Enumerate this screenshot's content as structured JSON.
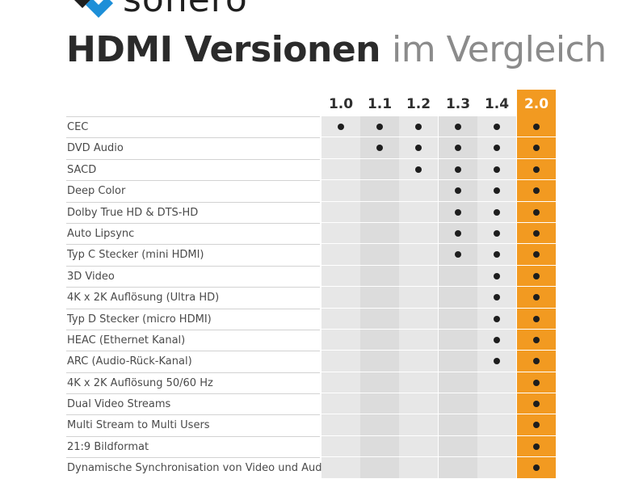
{
  "logo": {
    "text": "sonero"
  },
  "title": {
    "bold": "HDMI Versionen",
    "light": "im Vergleich"
  },
  "versions": [
    "1.0",
    "1.1",
    "1.2",
    "1.3",
    "1.4",
    "2.0"
  ],
  "highlight_color": "#f29a21",
  "features": [
    {
      "label": "CEC",
      "supported": [
        true,
        true,
        true,
        true,
        true,
        true
      ]
    },
    {
      "label": "DVD Audio",
      "supported": [
        false,
        true,
        true,
        true,
        true,
        true
      ]
    },
    {
      "label": "SACD",
      "supported": [
        false,
        false,
        true,
        true,
        true,
        true
      ]
    },
    {
      "label": "Deep Color",
      "supported": [
        false,
        false,
        false,
        true,
        true,
        true
      ]
    },
    {
      "label": "Dolby True HD & DTS-HD",
      "supported": [
        false,
        false,
        false,
        true,
        true,
        true
      ]
    },
    {
      "label": "Auto Lipsync",
      "supported": [
        false,
        false,
        false,
        true,
        true,
        true
      ]
    },
    {
      "label": "Typ C Stecker (mini HDMI)",
      "supported": [
        false,
        false,
        false,
        true,
        true,
        true
      ]
    },
    {
      "label": "3D Video",
      "supported": [
        false,
        false,
        false,
        false,
        true,
        true
      ]
    },
    {
      "label": "4K x 2K Auflösung (Ultra HD)",
      "supported": [
        false,
        false,
        false,
        false,
        true,
        true
      ]
    },
    {
      "label": "Typ D Stecker (micro HDMI)",
      "supported": [
        false,
        false,
        false,
        false,
        true,
        true
      ]
    },
    {
      "label": "HEAC (Ethernet Kanal)",
      "supported": [
        false,
        false,
        false,
        false,
        true,
        true
      ]
    },
    {
      "label": "ARC (Audio-Rück-Kanal)",
      "supported": [
        false,
        false,
        false,
        false,
        true,
        true
      ]
    },
    {
      "label": "4K x 2K Auflösung 50/60 Hz",
      "supported": [
        false,
        false,
        false,
        false,
        false,
        true
      ]
    },
    {
      "label": "Dual Video Streams",
      "supported": [
        false,
        false,
        false,
        false,
        false,
        true
      ]
    },
    {
      "label": "Multi Stream to Multi Users",
      "supported": [
        false,
        false,
        false,
        false,
        false,
        true
      ]
    },
    {
      "label": "21:9 Bildformat",
      "supported": [
        false,
        false,
        false,
        false,
        false,
        true
      ]
    },
    {
      "label": "Dynamische Synchronisation von Video und Audio",
      "supported": [
        false,
        false,
        false,
        false,
        false,
        true
      ]
    }
  ]
}
